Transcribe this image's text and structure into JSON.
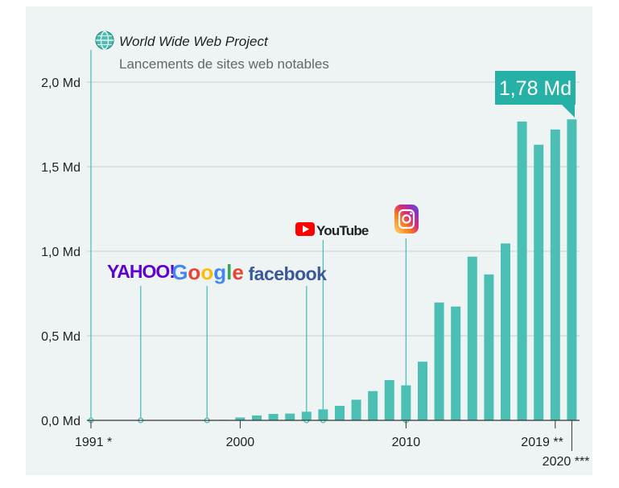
{
  "header": {
    "globe_icon": "globe-icon",
    "project_label": "World Wide Web Project",
    "subtitle": "Lancements de sites web notables"
  },
  "colors": {
    "background": "#eef4f4",
    "bar": "#4cbfb4",
    "grid": "#c8d0d0",
    "callout": "#27b0a6",
    "text": "#222222",
    "muted": "#666666"
  },
  "chart_data": {
    "type": "bar",
    "title": "",
    "subtitle": "Lancements de sites web notables",
    "xlabel": "",
    "ylabel": "",
    "ylim": [
      0,
      2.0
    ],
    "yticks": [
      0,
      0.5,
      1.0,
      1.5,
      2.0
    ],
    "ytick_labels": [
      "0,0 Md",
      "0,5 Md",
      "1,0 Md",
      "1,5 Md",
      "2,0 Md"
    ],
    "x_tick_labels": [
      {
        "year": 1991,
        "label": "1991 *"
      },
      {
        "year": 2000,
        "label": "2000"
      },
      {
        "year": 2010,
        "label": "2010"
      },
      {
        "year": 2019,
        "label": "2019 **"
      },
      {
        "year": 2020,
        "label": "2020 ***"
      }
    ],
    "categories": [
      1991,
      1992,
      1993,
      1994,
      1995,
      1996,
      1997,
      1998,
      1999,
      2000,
      2001,
      2002,
      2003,
      2004,
      2005,
      2006,
      2007,
      2008,
      2009,
      2010,
      2011,
      2012,
      2013,
      2014,
      2015,
      2016,
      2017,
      2018,
      2019,
      2020
    ],
    "values": [
      0.0,
      0.0,
      0.0,
      0.0,
      0.0,
      0.0,
      0.0,
      0.0,
      0.003,
      0.017,
      0.029,
      0.038,
      0.04,
      0.051,
      0.065,
      0.086,
      0.122,
      0.173,
      0.238,
      0.207,
      0.347,
      0.697,
      0.673,
      0.968,
      0.863,
      1.046,
      1.767,
      1.63,
      1.72,
      1.78
    ],
    "grid": true,
    "callout": {
      "year": 2020,
      "label": "1,78 Md"
    },
    "launches": [
      {
        "year": 1991,
        "name": "World Wide Web Project",
        "logo": "globe-icon"
      },
      {
        "year": 1994,
        "name": "YAHOO!",
        "logo": "yahoo-logo"
      },
      {
        "year": 1998,
        "name": "Google",
        "logo": "google-logo"
      },
      {
        "year": 2004,
        "name": "facebook",
        "logo": "facebook-logo"
      },
      {
        "year": 2005,
        "name": "YouTube",
        "logo": "youtube-logo"
      },
      {
        "year": 2010,
        "name": "Instagram",
        "logo": "instagram-logo"
      }
    ],
    "logos": {
      "yahoo": "YAHOO!",
      "google": [
        "G",
        "o",
        "o",
        "g",
        "l",
        "e"
      ],
      "google_colors": [
        "#4285f4",
        "#ea4335",
        "#fbbc05",
        "#4285f4",
        "#34a853",
        "#ea4335"
      ],
      "facebook": "facebook",
      "youtube": "YouTube"
    }
  }
}
